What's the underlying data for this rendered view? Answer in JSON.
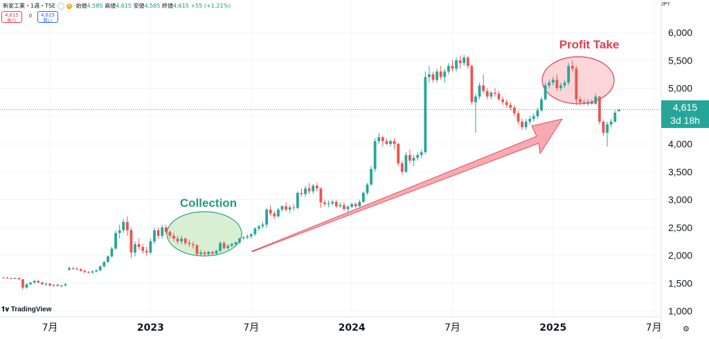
{
  "header": {
    "title": "新家工業・1週・TSE",
    "d_label": "D",
    "open_label": "始値",
    "open_value": "4,585",
    "high_label": "高値",
    "high_value": "4,615",
    "low_label": "安値",
    "low_value": "4,585",
    "close_label": "終値",
    "close_value": "4,615",
    "change": "+55 (+1.21%)"
  },
  "trade": {
    "sell_price": "4,615",
    "sell_label": "売り",
    "mid_value": "0",
    "buy_price": "4,615",
    "buy_label": "買い"
  },
  "currency": "JPY",
  "logo_text": "TradingView",
  "last_price": {
    "value": "4,615",
    "countdown": "3d 18h"
  },
  "colors": {
    "up": "#26a69a",
    "down": "#ef5350",
    "collection_fill": "#cbe9c4",
    "collection_stroke": "#2e9e7a",
    "profit_fill": "#f8c8cc",
    "profit_stroke": "#e33b4c",
    "arrow_fill": "#f7a1aa",
    "arrow_stroke": "#e84a5a"
  },
  "annotations": {
    "collection": "Collection",
    "profit_take": "Profit Take"
  },
  "chart_data": {
    "type": "candlestick",
    "title": "新家工業・1週・TSE",
    "ylim": [
      800,
      6400
    ],
    "y_ticks": [
      {
        "value": 1000,
        "label": "1,000"
      },
      {
        "value": 1500,
        "label": "1,500"
      },
      {
        "value": 2000,
        "label": "2,000"
      },
      {
        "value": 2500,
        "label": "2,500"
      },
      {
        "value": 3000,
        "label": "3,000"
      },
      {
        "value": 3500,
        "label": "3,500"
      },
      {
        "value": 4000,
        "label": "4,000"
      },
      {
        "value": 4500,
        "label": "4,500"
      },
      {
        "value": 5000,
        "label": "5,000"
      },
      {
        "value": 5500,
        "label": "5,500"
      },
      {
        "value": 6000,
        "label": "6,000"
      }
    ],
    "x_ticks": [
      {
        "index": 12,
        "label": "7月",
        "bold": false
      },
      {
        "index": 38,
        "label": "2023",
        "bold": true
      },
      {
        "index": 64,
        "label": "7月",
        "bold": false
      },
      {
        "index": 90,
        "label": "2024",
        "bold": true
      },
      {
        "index": 116,
        "label": "7月",
        "bold": false
      },
      {
        "index": 142,
        "label": "2025",
        "bold": true
      },
      {
        "index": 168,
        "label": "7月",
        "bold": false
      }
    ],
    "last_index": 159,
    "candles": [
      [
        1600,
        1610,
        1585,
        1595
      ],
      [
        1595,
        1615,
        1580,
        1590
      ],
      [
        1590,
        1600,
        1575,
        1585
      ],
      [
        1585,
        1605,
        1570,
        1590
      ],
      [
        1590,
        1600,
        1560,
        1570
      ],
      [
        1570,
        1575,
        1380,
        1420
      ],
      [
        1420,
        1500,
        1400,
        1480
      ],
      [
        1480,
        1520,
        1460,
        1510
      ],
      [
        1510,
        1560,
        1490,
        1540
      ],
      [
        1540,
        1560,
        1500,
        1510
      ],
      [
        1510,
        1530,
        1470,
        1480
      ],
      [
        1480,
        1510,
        1450,
        1490
      ],
      [
        1490,
        1500,
        1440,
        1460
      ],
      [
        1460,
        1480,
        1430,
        1470
      ],
      [
        1470,
        1490,
        1440,
        1450
      ],
      [
        1450,
        1470,
        1420,
        1460
      ],
      [
        1460,
        1500,
        1440,
        1480
      ],
      [
        1740,
        1800,
        1720,
        1770
      ],
      [
        1770,
        1790,
        1740,
        1760
      ],
      [
        1760,
        1780,
        1730,
        1750
      ],
      [
        1750,
        1770,
        1710,
        1720
      ],
      [
        1720,
        1740,
        1680,
        1700
      ],
      [
        1700,
        1720,
        1670,
        1690
      ],
      [
        1690,
        1730,
        1670,
        1710
      ],
      [
        1710,
        1750,
        1690,
        1730
      ],
      [
        1730,
        1820,
        1710,
        1800
      ],
      [
        1800,
        1900,
        1780,
        1880
      ],
      [
        1880,
        2000,
        1860,
        1980
      ],
      [
        1980,
        2150,
        1960,
        2120
      ],
      [
        2120,
        2450,
        2100,
        2400
      ],
      [
        2400,
        2550,
        2300,
        2450
      ],
      [
        2450,
        2650,
        2400,
        2600
      ],
      [
        2600,
        2700,
        2350,
        2450
      ],
      [
        2450,
        2500,
        1950,
        2050
      ],
      [
        2050,
        2250,
        1980,
        2200
      ],
      [
        2200,
        2300,
        2100,
        2150
      ],
      [
        2150,
        2200,
        2030,
        2080
      ],
      [
        2080,
        2150,
        1980,
        2050
      ],
      [
        2050,
        2300,
        2020,
        2250
      ],
      [
        2250,
        2500,
        2200,
        2450
      ],
      [
        2450,
        2500,
        2300,
        2350
      ],
      [
        2350,
        2550,
        2300,
        2500
      ],
      [
        2500,
        2550,
        2380,
        2420
      ],
      [
        2420,
        2450,
        2300,
        2350
      ],
      [
        2350,
        2400,
        2250,
        2300
      ],
      [
        2300,
        2350,
        2200,
        2250
      ],
      [
        2250,
        2350,
        2200,
        2300
      ],
      [
        2300,
        2320,
        2180,
        2220
      ],
      [
        2220,
        2280,
        2150,
        2200
      ],
      [
        2200,
        2250,
        2120,
        2180
      ],
      [
        2180,
        2200,
        1980,
        2020
      ],
      [
        2020,
        2100,
        1990,
        2050
      ],
      [
        2050,
        2080,
        1980,
        2020
      ],
      [
        2020,
        2080,
        2000,
        2060
      ],
      [
        2060,
        2080,
        2000,
        2030
      ],
      [
        2030,
        2100,
        2010,
        2080
      ],
      [
        2080,
        2250,
        2050,
        2220
      ],
      [
        2220,
        2250,
        2100,
        2130
      ],
      [
        2130,
        2200,
        2100,
        2170
      ],
      [
        2170,
        2230,
        2150,
        2200
      ],
      [
        2200,
        2250,
        2180,
        2230
      ],
      [
        2230,
        2320,
        2200,
        2300
      ],
      [
        2300,
        2350,
        2280,
        2320
      ],
      [
        2320,
        2380,
        2290,
        2340
      ],
      [
        2340,
        2400,
        2300,
        2380
      ],
      [
        2380,
        2500,
        2350,
        2480
      ],
      [
        2480,
        2550,
        2440,
        2520
      ],
      [
        2520,
        2600,
        2480,
        2550
      ],
      [
        2550,
        2850,
        2500,
        2820
      ],
      [
        2820,
        2900,
        2700,
        2750
      ],
      [
        2750,
        2800,
        2650,
        2700
      ],
      [
        2700,
        2850,
        2680,
        2820
      ],
      [
        2820,
        2900,
        2780,
        2880
      ],
      [
        2880,
        2950,
        2780,
        2820
      ],
      [
        2820,
        2900,
        2760,
        2860
      ],
      [
        2860,
        2920,
        2800,
        2850
      ],
      [
        2850,
        3150,
        2830,
        3120
      ],
      [
        3120,
        3200,
        3050,
        3100
      ],
      [
        3100,
        3250,
        3050,
        3200
      ],
      [
        3200,
        3300,
        3100,
        3150
      ],
      [
        3150,
        3280,
        3100,
        3250
      ],
      [
        3250,
        3300,
        3150,
        3200
      ],
      [
        3200,
        3220,
        2850,
        2950
      ],
      [
        2950,
        3000,
        2880,
        2920
      ],
      [
        2920,
        2980,
        2860,
        2930
      ],
      [
        2930,
        3000,
        2900,
        2960
      ],
      [
        2960,
        3000,
        2850,
        2880
      ],
      [
        2880,
        2950,
        2850,
        2900
      ],
      [
        2900,
        2950,
        2800,
        2830
      ],
      [
        2830,
        2900,
        2780,
        2870
      ],
      [
        2870,
        2950,
        2850,
        2920
      ],
      [
        2920,
        2950,
        2850,
        2880
      ],
      [
        2880,
        3000,
        2870,
        2960
      ],
      [
        2960,
        3150,
        2940,
        3120
      ],
      [
        3120,
        3300,
        3080,
        3270
      ],
      [
        3270,
        3600,
        3250,
        3550
      ],
      [
        3550,
        4100,
        3500,
        4050
      ],
      [
        4050,
        4200,
        4000,
        4120
      ],
      [
        4120,
        4150,
        3950,
        4050
      ],
      [
        4050,
        4100,
        3980,
        4000
      ],
      [
        4000,
        4080,
        3950,
        4050
      ],
      [
        4050,
        4100,
        3900,
        4000
      ],
      [
        4000,
        4020,
        3600,
        3650
      ],
      [
        3650,
        3700,
        3450,
        3500
      ],
      [
        3500,
        3850,
        3480,
        3800
      ],
      [
        3800,
        3900,
        3650,
        3700
      ],
      [
        3700,
        3800,
        3600,
        3750
      ],
      [
        3750,
        3850,
        3700,
        3800
      ],
      [
        3800,
        3900,
        3740,
        3850
      ],
      [
        3850,
        5300,
        3820,
        5200
      ],
      [
        5200,
        5400,
        5100,
        5250
      ],
      [
        5250,
        5300,
        5100,
        5150
      ],
      [
        5150,
        5350,
        5100,
        5300
      ],
      [
        5300,
        5400,
        5150,
        5200
      ],
      [
        5200,
        5350,
        5100,
        5300
      ],
      [
        5300,
        5450,
        5250,
        5400
      ],
      [
        5400,
        5500,
        5300,
        5350
      ],
      [
        5350,
        5550,
        5300,
        5500
      ],
      [
        5500,
        5580,
        5350,
        5450
      ],
      [
        5450,
        5600,
        5400,
        5550
      ],
      [
        5550,
        5580,
        5350,
        5400
      ],
      [
        5400,
        5420,
        4700,
        4750
      ],
      [
        4750,
        4900,
        4200,
        4850
      ],
      [
        4850,
        5100,
        4800,
        5050
      ],
      [
        5050,
        5250,
        4900,
        4950
      ],
      [
        4950,
        5000,
        4800,
        4850
      ],
      [
        4850,
        4950,
        4800,
        4920
      ],
      [
        4920,
        5000,
        4850,
        4900
      ],
      [
        4900,
        4950,
        4780,
        4800
      ],
      [
        4800,
        4850,
        4700,
        4750
      ],
      [
        4750,
        4800,
        4650,
        4700
      ],
      [
        4700,
        4750,
        4600,
        4650
      ],
      [
        4650,
        4700,
        4500,
        4550
      ],
      [
        4550,
        4600,
        4350,
        4400
      ],
      [
        4400,
        4450,
        4250,
        4300
      ],
      [
        4300,
        4450,
        4250,
        4400
      ],
      [
        4400,
        4500,
        4350,
        4450
      ],
      [
        4450,
        4550,
        4400,
        4500
      ],
      [
        4500,
        4650,
        4450,
        4600
      ],
      [
        4600,
        4850,
        4580,
        4800
      ],
      [
        4800,
        5100,
        4780,
        5050
      ],
      [
        5050,
        5150,
        5000,
        5100
      ],
      [
        5100,
        5200,
        5050,
        5150
      ],
      [
        5150,
        5250,
        4950,
        5000
      ],
      [
        5000,
        5100,
        4950,
        5050
      ],
      [
        5050,
        5150,
        5000,
        5100
      ],
      [
        5100,
        5450,
        5050,
        5400
      ],
      [
        5400,
        5500,
        5300,
        5350
      ],
      [
        5350,
        5400,
        4700,
        4800
      ],
      [
        4800,
        4850,
        4700,
        4750
      ],
      [
        4750,
        4800,
        4700,
        4720
      ],
      [
        4720,
        4800,
        4680,
        4750
      ],
      [
        4750,
        4800,
        4700,
        4720
      ],
      [
        4720,
        4900,
        4700,
        4850
      ],
      [
        4850,
        4860,
        4350,
        4400
      ],
      [
        4400,
        4420,
        4150,
        4200
      ],
      [
        4200,
        4400,
        3950,
        4350
      ],
      [
        4350,
        4450,
        4300,
        4400
      ],
      [
        4400,
        4600,
        4380,
        4560
      ],
      [
        4585,
        4615,
        4585,
        4615
      ]
    ]
  }
}
